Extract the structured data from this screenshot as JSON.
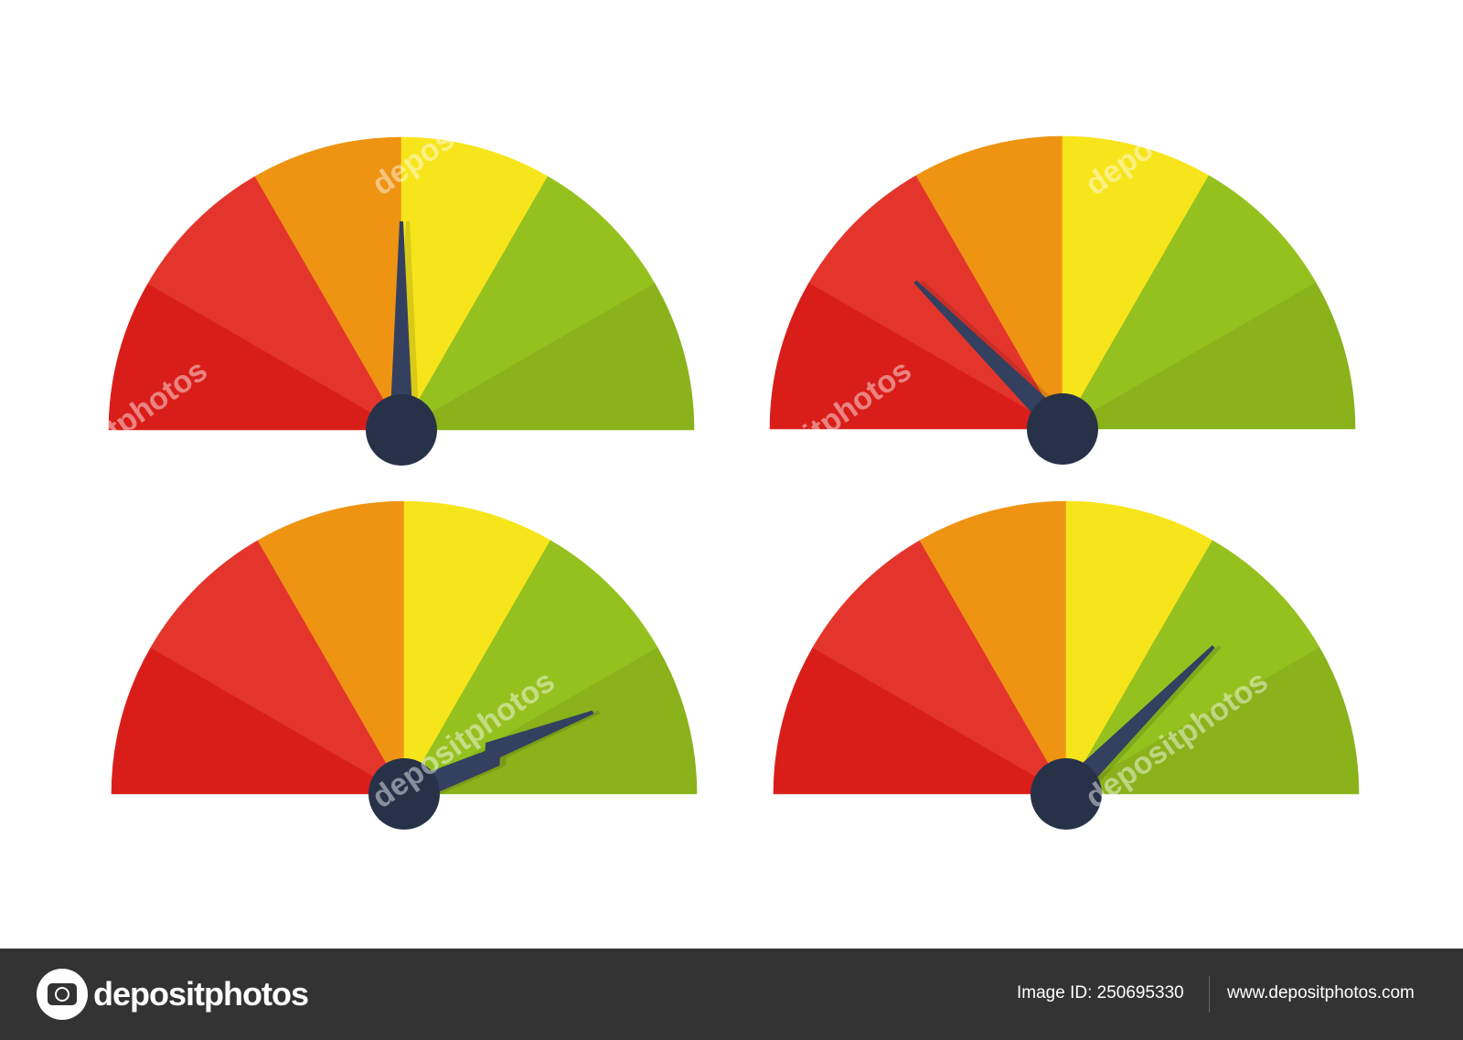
{
  "colors": {
    "dark_red": "#d91e1a",
    "red": "#e4352d",
    "orange": "#ee9412",
    "yellow": "#f7e51c",
    "light_green": "#95c11f",
    "dark_green": "#89b21b",
    "needle": "#33405f",
    "hub": "#273249",
    "footer_bg": "#333333"
  },
  "gauges": [
    {
      "value_percent": 50,
      "needle_style": "plain"
    },
    {
      "value_percent": 25,
      "needle_style": "plain"
    },
    {
      "value_percent": 87,
      "needle_style": "lightning"
    },
    {
      "value_percent": 75,
      "needle_style": "plain"
    }
  ],
  "watermark": "depositphotos",
  "footer": {
    "logo_text": "depositphotos",
    "image_id": "Image ID: 250695330",
    "website": "www.depositphotos.com"
  }
}
